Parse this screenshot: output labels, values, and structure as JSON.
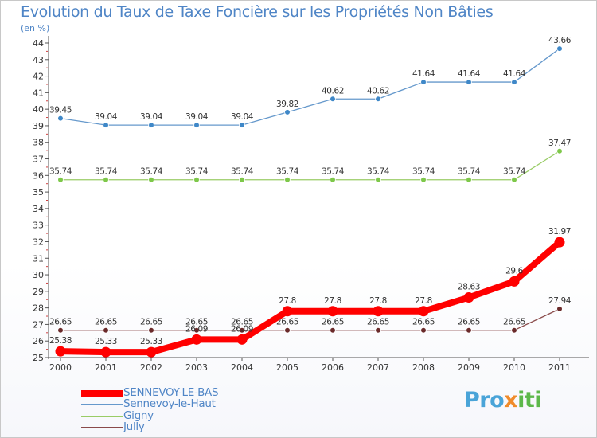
{
  "title": "Evolution du Taux de Taxe Foncière sur les Propriétés Non Bâties",
  "unit_label": "(en %)",
  "logo": {
    "part1": "Pro",
    "part2": "x",
    "part3": "iti"
  },
  "chart_data": {
    "type": "line",
    "title": "Evolution du Taux de Taxe Foncière sur les Propriétés Non Bâties",
    "ylabel": "(en %)",
    "xlabel": "",
    "ylim": [
      25,
      44
    ],
    "yticks": [
      "25",
      "26",
      "27",
      "28",
      "29",
      "30",
      "31",
      "32",
      "33",
      "34",
      "35",
      "36",
      "37",
      "38",
      "39",
      "40",
      "41",
      "42",
      "43",
      "44"
    ],
    "categories": [
      "2000",
      "2001",
      "2002",
      "2003",
      "2004",
      "2005",
      "2006",
      "2007",
      "2008",
      "2009",
      "2010",
      "2011"
    ],
    "legend_position": "bottom-left",
    "series": [
      {
        "name": "Sennevoy-le-Haut",
        "color": "#6699cc",
        "marker": "#3f88c8",
        "values": [
          39.45,
          39.04,
          39.04,
          39.04,
          39.04,
          39.82,
          40.62,
          40.62,
          41.64,
          41.64,
          41.64,
          43.66
        ],
        "labels": [
          "39.45",
          "39.04",
          "39.04",
          "39.04",
          "39.04",
          "39.82",
          "40.62",
          "40.62",
          "41.64",
          "41.64",
          "41.64",
          "43.66"
        ]
      },
      {
        "name": "Gigny",
        "color": "#99cc66",
        "marker": "#7ec84a",
        "values": [
          35.74,
          35.74,
          35.74,
          35.74,
          35.74,
          35.74,
          35.74,
          35.74,
          35.74,
          35.74,
          35.74,
          37.47
        ],
        "labels": [
          "35.74",
          "35.74",
          "35.74",
          "35.74",
          "35.74",
          "35.74",
          "35.74",
          "35.74",
          "35.74",
          "35.74",
          "35.74",
          "37.47"
        ]
      },
      {
        "name": "Jully",
        "color": "#8a4a4a",
        "marker": "#6a2a2a",
        "values": [
          26.65,
          26.65,
          26.65,
          26.65,
          26.65,
          26.65,
          26.65,
          26.65,
          26.65,
          26.65,
          26.65,
          27.94
        ],
        "labels": [
          "26.65",
          "26.65",
          "26.65",
          "26.65",
          "26.65",
          "26.65",
          "26.65",
          "26.65",
          "26.65",
          "26.65",
          "26.65",
          "27.94"
        ]
      },
      {
        "name": "SENNEVOY-LE-BAS",
        "color": "#ff0000",
        "marker": "#ff0000",
        "values": [
          25.38,
          25.33,
          25.33,
          26.09,
          26.09,
          27.8,
          27.8,
          27.8,
          27.8,
          28.63,
          29.6,
          31.97
        ],
        "labels": [
          "25.38",
          "25.33",
          "25.33",
          "26.09",
          "26.09",
          "27.8",
          "27.8",
          "27.8",
          "27.8",
          "28.63",
          "29.6",
          "31.97"
        ]
      }
    ],
    "legend": [
      "SENNEVOY-LE-BAS",
      "Sennevoy-le-Haut",
      "Gigny",
      "Jully"
    ]
  }
}
